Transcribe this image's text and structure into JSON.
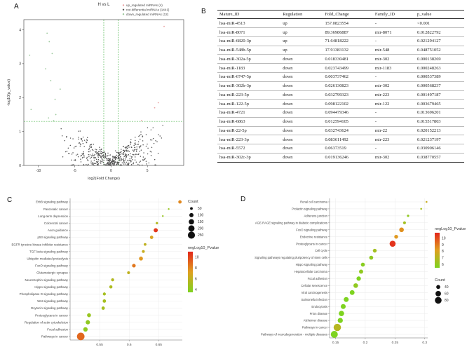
{
  "panels": {
    "a": {
      "letter": "A"
    },
    "b": {
      "letter": "B"
    },
    "c": {
      "letter": "C"
    },
    "d": {
      "letter": "D"
    }
  },
  "colors": {
    "up": "#e8a2a2",
    "nodiff": "#555555",
    "down": "#9dc99d",
    "threshold": "#33aa33",
    "grad_high": "#e3261b",
    "grad_mid": "#e0a020",
    "grad_low": "#7ed320"
  },
  "table": {
    "headers": [
      "Mature_ID",
      "Regulation",
      "Fold_Change",
      "Family_ID",
      "p_value"
    ],
    "rows": [
      [
        "hsa-miR-4513",
        "up",
        "157.0823554",
        "-",
        "<0.001"
      ],
      [
        "hsa-miR-8071",
        "up",
        "89.36986887",
        "mir-8071",
        "0.012822792"
      ],
      [
        "hsa-miR-6820-3p",
        "up",
        "71.64818222",
        "-",
        "0.021294127"
      ],
      [
        "hsa-miR-548b-5p",
        "up",
        "17.91383132",
        "mir-548",
        "0.048751052"
      ],
      [
        "hsa-miR-302a-5p",
        "down",
        "0.018330481",
        "mir-302",
        "0.000138269"
      ],
      [
        "hsa-miR-1183",
        "down",
        "0.023743499",
        "mir-1183",
        "0.000248263"
      ],
      [
        "hsa-miR-6747-5p",
        "down",
        "0.003737462",
        "-",
        "0.000537389"
      ],
      [
        "hsa-miR-302b-3p",
        "down",
        "0.026130823",
        "mir-302",
        "0.000568237"
      ],
      [
        "hsa-miR-223-5p",
        "down",
        "0.032799323",
        "mir-223",
        "0.001497187"
      ],
      [
        "hsa-miR-122-5p",
        "down",
        "0.098122102",
        "mir-122",
        "0.003679465"
      ],
      [
        "hsa-miR-4721",
        "down",
        "0.094479346",
        "-",
        "0.013696201"
      ],
      [
        "hsa-miR-6863",
        "down",
        "0.012594105",
        "-",
        "0.015517803"
      ],
      [
        "hsa-miR-22-5p",
        "down",
        "0.032743624",
        "mir-22",
        "0.020152213"
      ],
      [
        "hsa-miR-223-3p",
        "down",
        "0.083611492",
        "mir-223",
        "0.021237197"
      ],
      [
        "hsa-miR-5572",
        "down",
        "0.06373519",
        "-",
        "0.030906146"
      ],
      [
        "hsa-miR-302c-3p",
        "down",
        "0.019136246",
        "mir-302",
        "0.038770557"
      ]
    ]
  },
  "chart_data": [
    {
      "id": "A",
      "type": "scatter",
      "title": "H vs L",
      "xlabel": "log2(Fold Change)",
      "ylabel": "-log10(p_value)",
      "xlim": [
        -12,
        10
      ],
      "ylim": [
        0,
        4.3
      ],
      "xticks": [
        -10,
        -5,
        0,
        5
      ],
      "yticks": [
        0,
        1,
        2,
        3,
        4
      ],
      "hline": 1.3,
      "vlines": [
        -1,
        1
      ],
      "legend": [
        {
          "label": "up_regulated miRNAs (4)",
          "color": "#e8a2a2"
        },
        {
          "label": "not differential miRNAs (1441)",
          "color": "#555555"
        },
        {
          "label": "down_regulated miRNAs (12)",
          "color": "#9dc99d"
        }
      ],
      "up_points": [
        [
          7.3,
          4.1
        ],
        [
          6.5,
          1.85
        ],
        [
          6.0,
          1.7
        ],
        [
          4.2,
          1.32
        ]
      ],
      "down_points": [
        [
          -11.2,
          3.25
        ],
        [
          -8.8,
          3.9
        ],
        [
          -8.5,
          3.65
        ],
        [
          -8.1,
          3.3
        ],
        [
          -9.0,
          2.85
        ],
        [
          -8.3,
          2.5
        ],
        [
          -7.0,
          2.25
        ],
        [
          -7.7,
          1.95
        ],
        [
          -11.0,
          1.65
        ],
        [
          -8.6,
          1.4
        ],
        [
          -7.6,
          1.5
        ],
        [
          -7.9,
          1.32
        ]
      ]
    },
    {
      "id": "C",
      "type": "scatter",
      "subtype": "bubble",
      "xlabel": "",
      "ylabel": "",
      "xlim": [
        0.5,
        0.69
      ],
      "xticks": [
        0.55,
        0.6,
        0.65
      ],
      "categories": [
        "ErbB signaling pathway",
        "Pancreatic cancer",
        "Long-term depression",
        "Colorectal cancer",
        "Axon guidance",
        "p53 signaling pathway",
        "EGFR tyrosine kinase inhibitor resistance",
        "TGF-beta signaling pathway",
        "Ubiquitin mediated proteolysis",
        "FoxO signaling pathway",
        "Glutamatergic synapse",
        "Neurotrophin signaling pathway",
        "Hippo signaling pathway",
        "Phospholipase D signaling pathway",
        "Wnt signaling pathway",
        "Oxytocin signaling pathway",
        "Proteoglycans in cancer",
        "Regulation of actin cytoskeleton",
        "Focal adhesion",
        "Pathways in cancer"
      ],
      "x": [
        0.686,
        0.667,
        0.657,
        0.647,
        0.645,
        0.638,
        0.627,
        0.624,
        0.62,
        0.608,
        0.599,
        0.572,
        0.569,
        0.558,
        0.558,
        0.556,
        0.532,
        0.53,
        0.526,
        0.518
      ],
      "count": [
        70,
        25,
        25,
        40,
        100,
        70,
        50,
        55,
        90,
        80,
        55,
        60,
        65,
        60,
        70,
        70,
        90,
        105,
        110,
        280
      ],
      "neglog10_pvalue": [
        8,
        4.5,
        4.5,
        5.5,
        10.5,
        7,
        6,
        6.3,
        7.5,
        8.5,
        6,
        5.5,
        5.3,
        5,
        5,
        5,
        4.5,
        4.2,
        4.2,
        9
      ],
      "legend_count": {
        "title": "Count",
        "values": [
          50,
          100,
          150,
          200,
          250
        ]
      },
      "legend_color": {
        "title": "negLog10_Pvalue",
        "ticks": [
          10,
          8,
          6,
          4
        ]
      }
    },
    {
      "id": "D",
      "type": "scatter",
      "subtype": "bubble",
      "xlabel": "",
      "ylabel": "",
      "xlim": [
        0.14,
        0.305
      ],
      "xticks": [
        0.15,
        0.2,
        0.25,
        0.3
      ],
      "categories": [
        "Renal cell carcinoma",
        "Prolactin signaling pathway",
        "Adherens junction",
        "AGE-RAGE signaling pathway in diabetic complications",
        "FoxO signaling pathway",
        "Endocrine resistance",
        "Proteoglycans in cancer",
        "Cell cycle",
        "Signaling pathways regulating pluripotency of stem cells",
        "Hippo signaling pathway",
        "Hepatocellular carcinoma",
        "Focal adhesion",
        "Cellular senescence",
        "Viral carcinogenesis",
        "Salmonella infection",
        "Endocytosis",
        "Prion disease",
        "Alzheimer disease",
        "Pathways in cancer",
        "Pathways of neurodegeneration - multiple diseases"
      ],
      "x": [
        0.303,
        0.294,
        0.272,
        0.266,
        0.261,
        0.252,
        0.246,
        0.216,
        0.21,
        0.196,
        0.193,
        0.189,
        0.184,
        0.178,
        0.168,
        0.163,
        0.16,
        0.158,
        0.153,
        0.148
      ],
      "count": [
        18,
        18,
        22,
        28,
        48,
        38,
        68,
        38,
        40,
        40,
        42,
        45,
        48,
        50,
        52,
        52,
        58,
        55,
        90,
        84
      ],
      "neglog10_pvalue": [
        7.5,
        6.5,
        6,
        6.5,
        8.5,
        8.3,
        10.5,
        6.5,
        6,
        5.8,
        6,
        5.5,
        6,
        5.3,
        5.2,
        5.2,
        5.3,
        5,
        7,
        5
      ],
      "legend_count": {
        "title": "Count",
        "values": [
          40,
          60,
          80
        ]
      },
      "legend_color": {
        "title": "negLog10_Pvalue",
        "ticks": [
          10,
          9,
          8,
          7,
          6
        ]
      }
    }
  ]
}
